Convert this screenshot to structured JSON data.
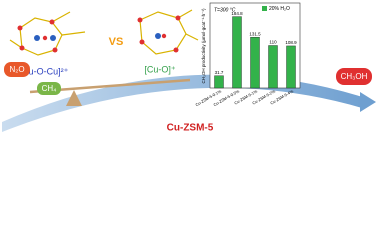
{
  "labels": {
    "left_gas": "N₂O",
    "methane": "CH₄",
    "product": "CH₃OH",
    "catalyst": "Cu-ZSM-5",
    "dimer": "[Cu-O-Cu]²⁺",
    "monomer": "[Cu-O]⁺",
    "versus": "VS"
  },
  "chart_data": {
    "type": "bar",
    "annotation": "T=300 °C",
    "y_label": "CH₃OH productivity (μmol·gcat⁻¹·h⁻¹)",
    "categories": [
      "Cu-ZSM-5-0.1%",
      "Cu-ZSM-5-0.5%",
      "Cu-ZSM-5-1%",
      "Cu-ZSM-5-2%",
      "Cu-ZSM-5-4%"
    ],
    "series": [
      {
        "name": "20% H₂O",
        "color": "#33b24a",
        "values": [
          31.7,
          184.8,
          131.5,
          110.0,
          108.9
        ]
      }
    ],
    "ylim": [
      0,
      220
    ]
  }
}
